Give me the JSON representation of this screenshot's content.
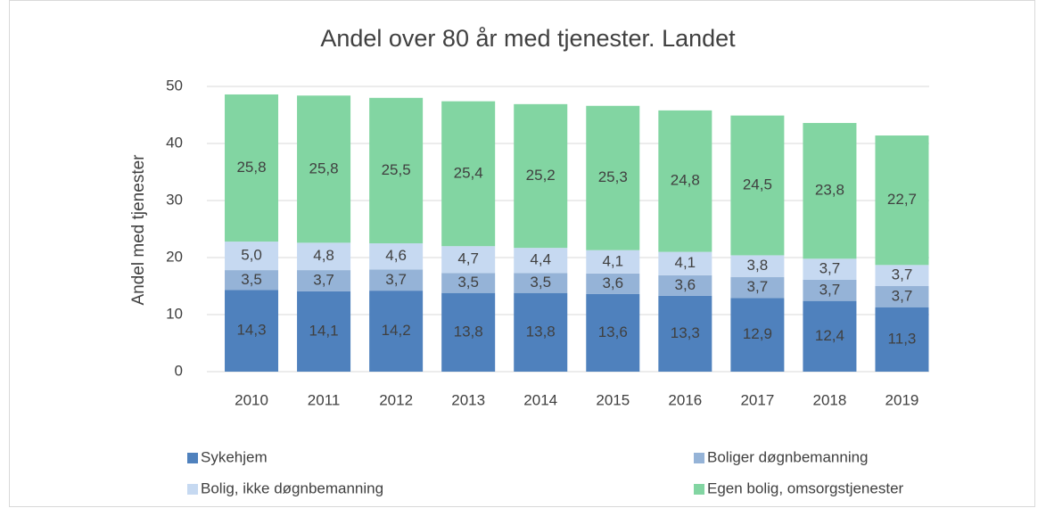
{
  "chart_data": {
    "type": "bar",
    "stacked": true,
    "title": "Andel over 80 år med tjenester. Landet",
    "y_label": "Andel med tjenester",
    "categories": [
      "2010",
      "2011",
      "2012",
      "2013",
      "2014",
      "2015",
      "2016",
      "2017",
      "2018",
      "2019"
    ],
    "series": [
      {
        "name": "Sykehjem",
        "color": "#4f81bd",
        "values": [
          14.3,
          14.1,
          14.2,
          13.8,
          13.8,
          13.6,
          13.3,
          12.9,
          12.4,
          11.3
        ],
        "value_labels": [
          "14,3",
          "14,1",
          "14,2",
          "13,8",
          "13,8",
          "13,6",
          "13,3",
          "12,9",
          "12,4",
          "11,3"
        ]
      },
      {
        "name": "Boliger døgnbemanning",
        "color": "#95b3d7",
        "values": [
          3.5,
          3.7,
          3.7,
          3.5,
          3.5,
          3.6,
          3.6,
          3.7,
          3.7,
          3.7
        ],
        "value_labels": [
          "3,5",
          "3,7",
          "3,7",
          "3,5",
          "3,5",
          "3,6",
          "3,6",
          "3,7",
          "3,7",
          "3,7"
        ]
      },
      {
        "name": "Bolig, ikke døgnbemanning",
        "color": "#c6d9f1",
        "values": [
          5.0,
          4.8,
          4.6,
          4.7,
          4.4,
          4.1,
          4.1,
          3.8,
          3.7,
          3.7
        ],
        "value_labels": [
          "5,0",
          "4,8",
          "4,6",
          "4,7",
          "4,4",
          "4,1",
          "4,1",
          "3,8",
          "3,7",
          "3,7"
        ]
      },
      {
        "name": "Egen bolig, omsorgstjenester",
        "color": "#82d5a2",
        "values": [
          25.8,
          25.8,
          25.5,
          25.4,
          25.2,
          25.3,
          24.8,
          24.5,
          23.8,
          22.7
        ],
        "value_labels": [
          "25,8",
          "25,8",
          "25,5",
          "25,4",
          "25,2",
          "25,3",
          "24,8",
          "24,5",
          "23,8",
          "22,7"
        ]
      }
    ],
    "ylim": [
      0,
      50
    ],
    "yticks": [
      0,
      10,
      20,
      30,
      40,
      50
    ],
    "grid": true,
    "legend": "bottom"
  }
}
